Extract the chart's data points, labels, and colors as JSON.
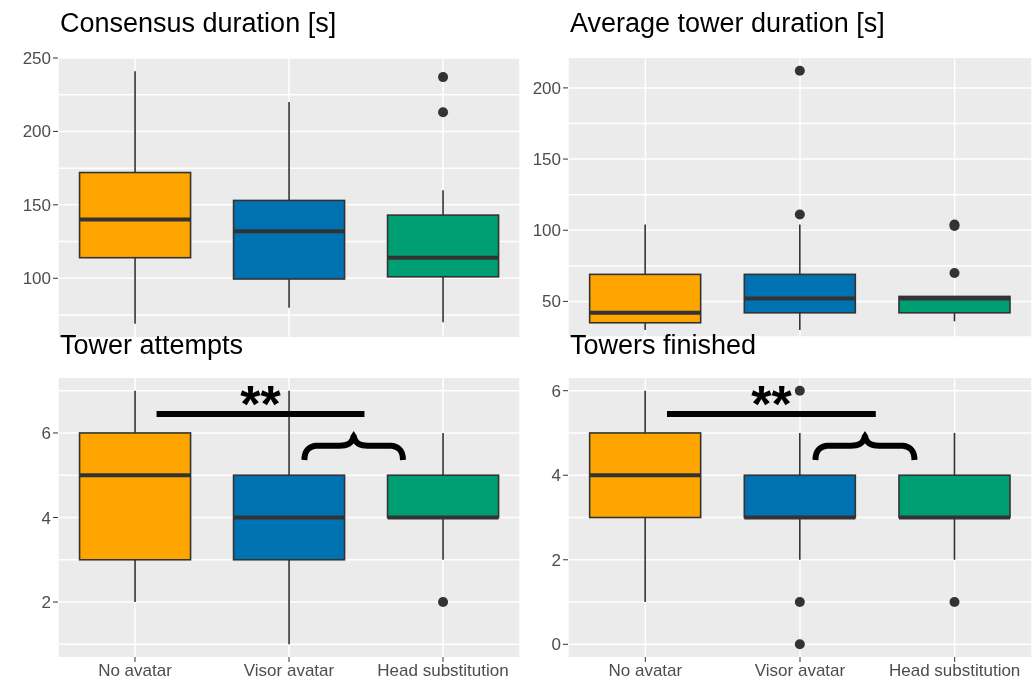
{
  "chart_data": [
    {
      "type": "box",
      "title": "Consensus duration [s]",
      "categories": [
        null,
        null,
        null
      ],
      "colors": [
        "#ffa500",
        "#0072b2",
        "#009e73"
      ],
      "boxes": [
        {
          "low": 69,
          "q1": 114,
          "median": 140,
          "q3": 172,
          "high": 241
        },
        {
          "low": 80,
          "q1": 99.5,
          "median": 132,
          "q3": 153,
          "high": 220
        },
        {
          "low": 70,
          "q1": 101,
          "median": 114,
          "q3": 143,
          "high": 160,
          "outliers": [
            213,
            237
          ]
        }
      ],
      "ylim": [
        60,
        250
      ],
      "yticks": [
        100,
        150,
        200,
        250
      ],
      "grid": true,
      "tick_labels": "y"
    },
    {
      "type": "box",
      "title": "Average tower duration [s]",
      "categories": [
        null,
        null,
        null
      ],
      "colors": [
        "#ffa500",
        "#0072b2",
        "#009e73"
      ],
      "boxes": [
        {
          "low": 30,
          "q1": 35,
          "median": 42,
          "q3": 69,
          "high": 104
        },
        {
          "low": 30,
          "q1": 42,
          "median": 52,
          "q3": 69,
          "high": 104,
          "outliers": [
            111,
            212
          ]
        },
        {
          "low": 36,
          "q1": 42,
          "median": 52,
          "q3": 53.5,
          "high": 53.5,
          "outliers": [
            70,
            103,
            104
          ]
        }
      ],
      "ylim": [
        25,
        221
      ],
      "yticks": [
        50,
        100,
        150,
        200
      ],
      "grid": true,
      "tick_labels": "y"
    },
    {
      "type": "box",
      "title": "Tower attempts",
      "categories": [
        "No avatar",
        "Visor avatar",
        "Head substitution"
      ],
      "colors": [
        "#ffa500",
        "#0072b2",
        "#009e73"
      ],
      "boxes": [
        {
          "low": 2,
          "q1": 3,
          "median": 5,
          "q3": 6,
          "high": 7
        },
        {
          "low": 1,
          "q1": 3,
          "median": 4,
          "q3": 5,
          "high": 7
        },
        {
          "low": 3,
          "q1": 4,
          "median": 4,
          "q3": 5,
          "high": 6,
          "outliers": [
            2
          ]
        }
      ],
      "ylim": [
        0.7,
        7.3
      ],
      "yticks": [
        2,
        4,
        6
      ],
      "grid": true,
      "annotations": [
        "**"
      ]
    },
    {
      "type": "box",
      "title": "Towers finished",
      "categories": [
        "No avatar",
        "Visor avatar",
        "Head substitution"
      ],
      "colors": [
        "#ffa500",
        "#0072b2",
        "#009e73"
      ],
      "boxes": [
        {
          "low": 1,
          "q1": 3,
          "median": 4,
          "q3": 5,
          "high": 6
        },
        {
          "low": 2,
          "q1": 3,
          "median": 3,
          "q3": 4,
          "high": 5,
          "outliers": [
            0,
            1,
            6
          ]
        },
        {
          "low": 2,
          "q1": 3,
          "median": 3,
          "q3": 4,
          "high": 5,
          "outliers": [
            1
          ]
        }
      ],
      "ylim": [
        -0.3,
        6.3
      ],
      "yticks": [
        0,
        2,
        4,
        6
      ],
      "grid": true,
      "annotations": [
        "**"
      ]
    }
  ]
}
